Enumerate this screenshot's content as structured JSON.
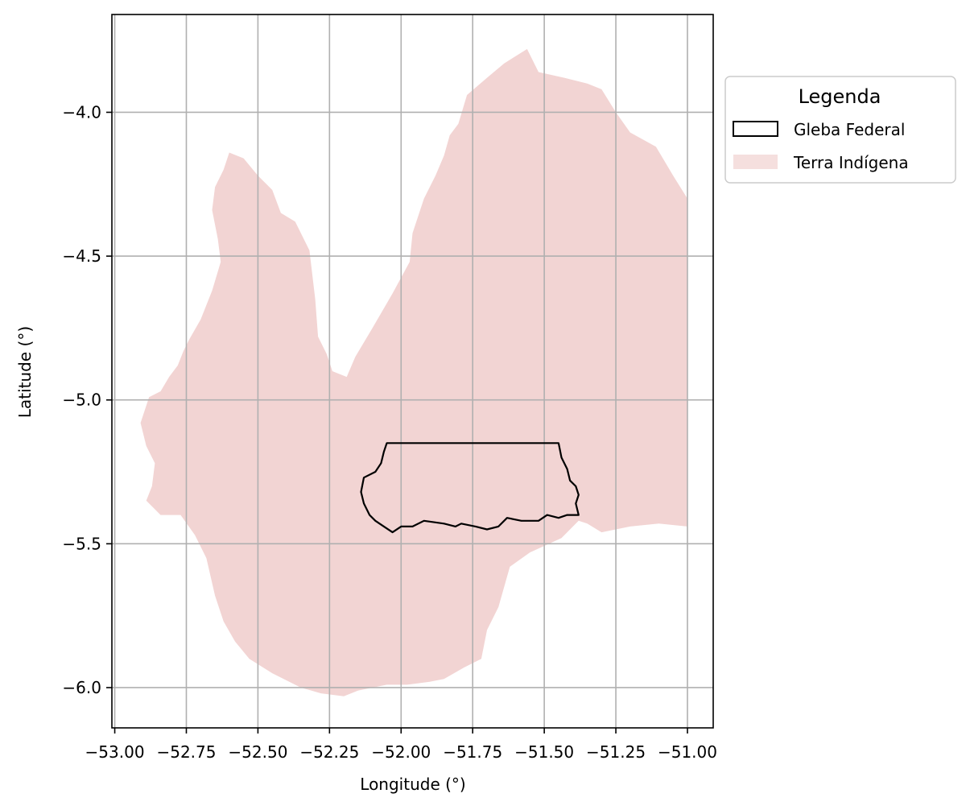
{
  "chart_data": {
    "type": "map",
    "xlabel": "Longitude (°)",
    "ylabel": "Latitude (°)",
    "xlim": [
      -53.01,
      -50.91
    ],
    "ylim": [
      -6.14,
      -3.66
    ],
    "xticks": [
      -53.0,
      -52.75,
      -52.5,
      -52.25,
      -52.0,
      -51.75,
      -51.5,
      -51.25,
      -51.0
    ],
    "xtick_labels": [
      "−53.00",
      "−52.75",
      "−52.50",
      "−52.25",
      "−52.00",
      "−51.75",
      "−51.50",
      "−51.25",
      "−51.00"
    ],
    "yticks": [
      -4.0,
      -4.5,
      -5.0,
      -5.5,
      -6.0
    ],
    "ytick_labels": [
      "−4.0",
      "−4.5",
      "−5.0",
      "−5.5",
      "−6.0"
    ],
    "grid": true,
    "legend": {
      "title": "Legenda",
      "placement": "outside-right-top",
      "entries": [
        {
          "label": "Gleba Federal",
          "style": "outline",
          "color": "#000000"
        },
        {
          "label": "Terra Indígena",
          "style": "fill",
          "color": "#f2d4d3"
        }
      ]
    },
    "layers": [
      {
        "name": "Terra Indígena",
        "color": "#f2d4d3",
        "polygon": [
          [
            -52.6,
            -4.14
          ],
          [
            -52.55,
            -4.16
          ],
          [
            -52.5,
            -4.22
          ],
          [
            -52.45,
            -4.27
          ],
          [
            -52.42,
            -4.35
          ],
          [
            -52.37,
            -4.38
          ],
          [
            -52.32,
            -4.48
          ],
          [
            -52.3,
            -4.65
          ],
          [
            -52.29,
            -4.78
          ],
          [
            -52.26,
            -4.84
          ],
          [
            -52.24,
            -4.9
          ],
          [
            -52.19,
            -4.92
          ],
          [
            -52.16,
            -4.85
          ],
          [
            -52.1,
            -4.75
          ],
          [
            -52.03,
            -4.63
          ],
          [
            -51.97,
            -4.52
          ],
          [
            -51.96,
            -4.42
          ],
          [
            -51.92,
            -4.3
          ],
          [
            -51.88,
            -4.22
          ],
          [
            -51.85,
            -4.15
          ],
          [
            -51.83,
            -4.08
          ],
          [
            -51.8,
            -4.04
          ],
          [
            -51.77,
            -3.94
          ],
          [
            -51.7,
            -3.88
          ],
          [
            -51.64,
            -3.83
          ],
          [
            -51.56,
            -3.78
          ],
          [
            -51.52,
            -3.86
          ],
          [
            -51.43,
            -3.88
          ],
          [
            -51.35,
            -3.9
          ],
          [
            -51.3,
            -3.92
          ],
          [
            -51.25,
            -4.0
          ],
          [
            -51.2,
            -4.07
          ],
          [
            -51.11,
            -4.12
          ],
          [
            -51.05,
            -4.22
          ],
          [
            -51.0,
            -4.3
          ],
          [
            -51.0,
            -5.44
          ],
          [
            -51.1,
            -5.43
          ],
          [
            -51.2,
            -5.44
          ],
          [
            -51.3,
            -5.46
          ],
          [
            -51.35,
            -5.43
          ],
          [
            -51.38,
            -5.42
          ],
          [
            -51.44,
            -5.48
          ],
          [
            -51.55,
            -5.53
          ],
          [
            -51.62,
            -5.58
          ],
          [
            -51.66,
            -5.72
          ],
          [
            -51.7,
            -5.8
          ],
          [
            -51.72,
            -5.9
          ],
          [
            -51.78,
            -5.93
          ],
          [
            -51.85,
            -5.97
          ],
          [
            -51.9,
            -5.98
          ],
          [
            -51.98,
            -5.99
          ],
          [
            -52.05,
            -5.99
          ],
          [
            -52.15,
            -6.01
          ],
          [
            -52.2,
            -6.03
          ],
          [
            -52.28,
            -6.02
          ],
          [
            -52.35,
            -6.0
          ],
          [
            -52.45,
            -5.95
          ],
          [
            -52.53,
            -5.9
          ],
          [
            -52.58,
            -5.84
          ],
          [
            -52.62,
            -5.77
          ],
          [
            -52.65,
            -5.68
          ],
          [
            -52.68,
            -5.55
          ],
          [
            -52.72,
            -5.47
          ],
          [
            -52.77,
            -5.4
          ],
          [
            -52.84,
            -5.4
          ],
          [
            -52.87,
            -5.37
          ],
          [
            -52.89,
            -5.35
          ],
          [
            -52.87,
            -5.3
          ],
          [
            -52.86,
            -5.22
          ],
          [
            -52.89,
            -5.16
          ],
          [
            -52.91,
            -5.08
          ],
          [
            -52.88,
            -4.99
          ],
          [
            -52.84,
            -4.97
          ],
          [
            -52.81,
            -4.92
          ],
          [
            -52.78,
            -4.88
          ],
          [
            -52.76,
            -4.83
          ],
          [
            -52.74,
            -4.79
          ],
          [
            -52.7,
            -4.72
          ],
          [
            -52.66,
            -4.62
          ],
          [
            -52.63,
            -4.52
          ],
          [
            -52.64,
            -4.44
          ],
          [
            -52.66,
            -4.34
          ],
          [
            -52.65,
            -4.26
          ],
          [
            -52.62,
            -4.2
          ]
        ]
      },
      {
        "name": "Gleba Federal",
        "color": "#000000",
        "polygon": [
          [
            -52.05,
            -5.15
          ],
          [
            -51.45,
            -5.15
          ],
          [
            -51.44,
            -5.2
          ],
          [
            -51.42,
            -5.24
          ],
          [
            -51.41,
            -5.28
          ],
          [
            -51.39,
            -5.3
          ],
          [
            -51.38,
            -5.33
          ],
          [
            -51.39,
            -5.36
          ],
          [
            -51.38,
            -5.4
          ],
          [
            -51.42,
            -5.4
          ],
          [
            -51.45,
            -5.41
          ],
          [
            -51.49,
            -5.4
          ],
          [
            -51.52,
            -5.42
          ],
          [
            -51.58,
            -5.42
          ],
          [
            -51.63,
            -5.41
          ],
          [
            -51.66,
            -5.44
          ],
          [
            -51.7,
            -5.45
          ],
          [
            -51.74,
            -5.44
          ],
          [
            -51.79,
            -5.43
          ],
          [
            -51.81,
            -5.44
          ],
          [
            -51.85,
            -5.43
          ],
          [
            -51.92,
            -5.42
          ],
          [
            -51.96,
            -5.44
          ],
          [
            -52.0,
            -5.44
          ],
          [
            -52.03,
            -5.46
          ],
          [
            -52.06,
            -5.44
          ],
          [
            -52.09,
            -5.42
          ],
          [
            -52.11,
            -5.4
          ],
          [
            -52.13,
            -5.36
          ],
          [
            -52.14,
            -5.32
          ],
          [
            -52.13,
            -5.27
          ],
          [
            -52.09,
            -5.25
          ],
          [
            -52.07,
            -5.22
          ],
          [
            -52.06,
            -5.18
          ]
        ]
      }
    ]
  }
}
